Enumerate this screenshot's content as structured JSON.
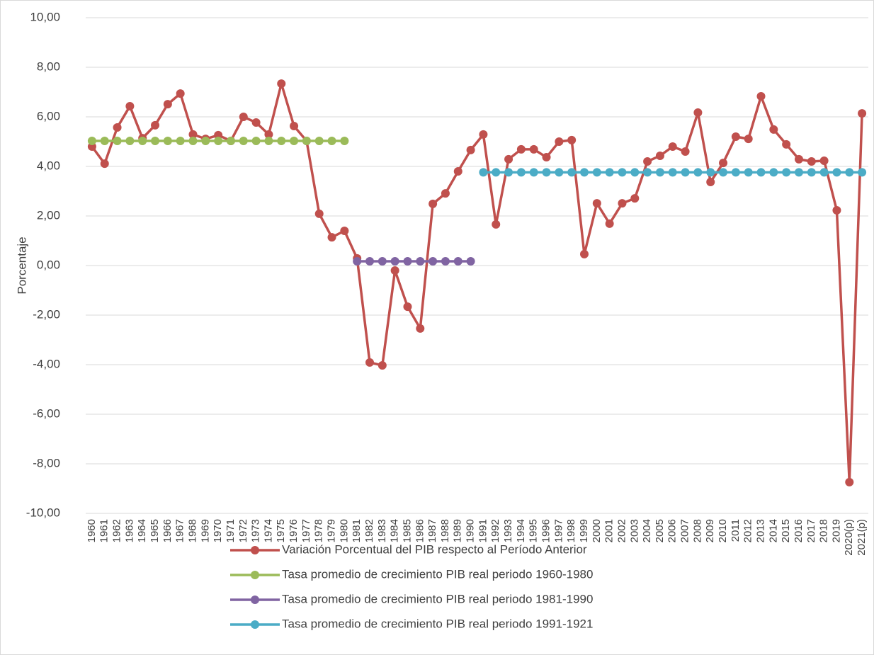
{
  "chart_data": {
    "type": "line",
    "y_label": "Porcentaje",
    "categories": [
      "1960",
      "1961",
      "1962",
      "1963",
      "1964",
      "1965",
      "1966",
      "1967",
      "1968",
      "1969",
      "1970",
      "1971",
      "1972",
      "1973",
      "1974",
      "1975",
      "1976",
      "1977",
      "1978",
      "1979",
      "1980",
      "1981",
      "1982",
      "1983",
      "1984",
      "1985",
      "1986",
      "1987",
      "1988",
      "1989",
      "1990",
      "1991",
      "1992",
      "1993",
      "1994",
      "1995",
      "1996",
      "1997",
      "1998",
      "1999",
      "2000",
      "2001",
      "2002",
      "2003",
      "2004",
      "2005",
      "2006",
      "2007",
      "2008",
      "2009",
      "2010",
      "2011",
      "2012",
      "2013",
      "2014",
      "2015",
      "2016",
      "2017",
      "2018",
      "2019",
      "2020(p)",
      "2021(p)"
    ],
    "series": [
      {
        "name": "Variación Porcentual del PIB respecto al Período Anterior",
        "color": "#c0504d",
        "values": [
          4.8,
          4.11,
          5.57,
          6.43,
          5.14,
          5.66,
          6.51,
          6.94,
          5.29,
          5.11,
          5.26,
          5.03,
          6.0,
          5.77,
          5.29,
          7.34,
          5.63,
          5.03,
          2.09,
          1.14,
          1.4,
          0.29,
          -3.91,
          -4.03,
          -0.2,
          -1.66,
          -2.54,
          2.49,
          2.91,
          3.8,
          4.66,
          5.29,
          1.66,
          4.29,
          4.69,
          4.69,
          4.37,
          5.0,
          5.06,
          0.46,
          2.51,
          1.69,
          2.51,
          2.71,
          4.2,
          4.43,
          4.8,
          4.6,
          6.17,
          3.37,
          4.14,
          5.2,
          5.11,
          6.83,
          5.49,
          4.89,
          4.29,
          4.2,
          4.23,
          2.23,
          -8.74,
          6.14
        ]
      },
      {
        "name": "Tasa promedio de crecimiento PIB real periodo 1960-1980",
        "color": "#9bbb59",
        "values": [
          5.03,
          5.03,
          5.03,
          5.03,
          5.03,
          5.03,
          5.03,
          5.03,
          5.03,
          5.03,
          5.03,
          5.03,
          5.03,
          5.03,
          5.03,
          5.03,
          5.03,
          5.03,
          5.03,
          5.03,
          5.03,
          null,
          null,
          null,
          null,
          null,
          null,
          null,
          null,
          null,
          null,
          null,
          null,
          null,
          null,
          null,
          null,
          null,
          null,
          null,
          null,
          null,
          null,
          null,
          null,
          null,
          null,
          null,
          null,
          null,
          null,
          null,
          null,
          null,
          null,
          null,
          null,
          null,
          null,
          null,
          null,
          null
        ]
      },
      {
        "name": "Tasa promedio de crecimiento PIB real periodo 1981-1990",
        "color": "#8064a2",
        "values": [
          null,
          null,
          null,
          null,
          null,
          null,
          null,
          null,
          null,
          null,
          null,
          null,
          null,
          null,
          null,
          null,
          null,
          null,
          null,
          null,
          null,
          0.17,
          0.17,
          0.17,
          0.17,
          0.17,
          0.17,
          0.17,
          0.17,
          0.17,
          0.17,
          null,
          null,
          null,
          null,
          null,
          null,
          null,
          null,
          null,
          null,
          null,
          null,
          null,
          null,
          null,
          null,
          null,
          null,
          null,
          null,
          null,
          null,
          null,
          null,
          null,
          null,
          null,
          null,
          null,
          null,
          null
        ]
      },
      {
        "name": "Tasa promedio de crecimiento PIB real periodo 1991-1921",
        "color": "#4bacc6",
        "values": [
          null,
          null,
          null,
          null,
          null,
          null,
          null,
          null,
          null,
          null,
          null,
          null,
          null,
          null,
          null,
          null,
          null,
          null,
          null,
          null,
          null,
          null,
          null,
          null,
          null,
          null,
          null,
          null,
          null,
          null,
          null,
          3.76,
          3.76,
          3.76,
          3.76,
          3.76,
          3.76,
          3.76,
          3.76,
          3.76,
          3.76,
          3.76,
          3.76,
          3.76,
          3.76,
          3.76,
          3.76,
          3.76,
          3.76,
          3.76,
          3.76,
          3.76,
          3.76,
          3.76,
          3.76,
          3.76,
          3.76,
          3.76,
          3.76,
          3.76,
          3.76,
          3.76
        ]
      }
    ],
    "ylim": [
      -10,
      10
    ],
    "yticks": [
      {
        "value": -10,
        "label": "-10,00"
      },
      {
        "value": -8,
        "label": "-8,00"
      },
      {
        "value": -6,
        "label": "-6,00"
      },
      {
        "value": -4,
        "label": "-4,00"
      },
      {
        "value": -2,
        "label": "-2,00"
      },
      {
        "value": 0,
        "label": "0,00"
      },
      {
        "value": 2,
        "label": "2,00"
      },
      {
        "value": 4,
        "label": "4,00"
      },
      {
        "value": 6,
        "label": "6,00"
      },
      {
        "value": 8,
        "label": "8,00"
      },
      {
        "value": 10,
        "label": "10,00"
      }
    ],
    "grid": true,
    "legend": "bottom"
  }
}
